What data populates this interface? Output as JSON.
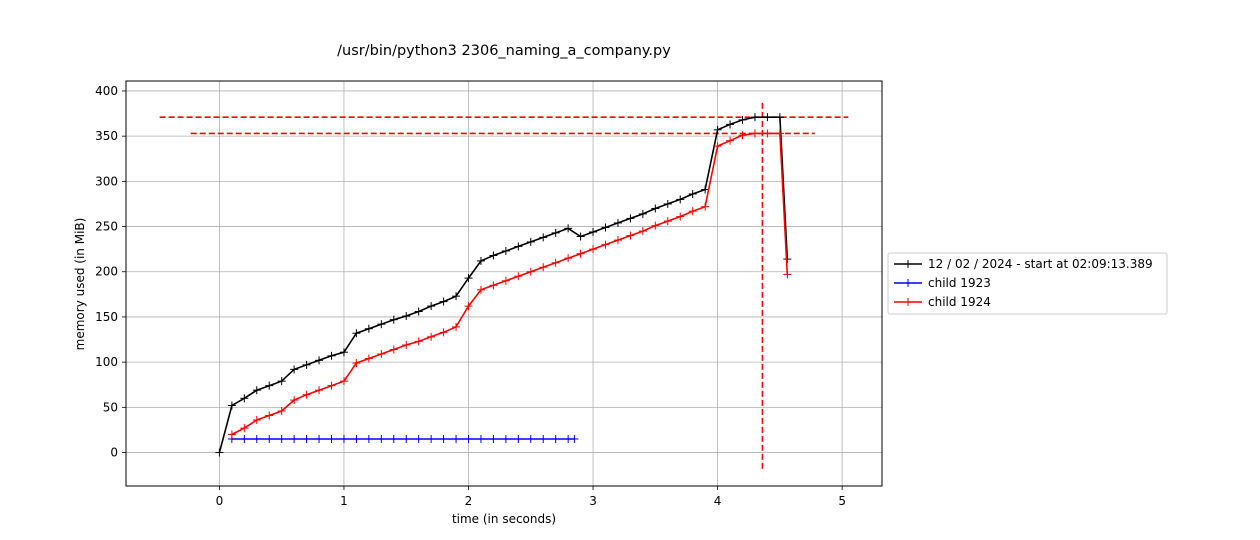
{
  "chart_data": {
    "type": "line",
    "title": "/usr/bin/python3 2306_naming_a_company.py",
    "xlabel": "time (in seconds)",
    "ylabel": "memory used (in MiB)",
    "xlim": [
      -0.75,
      5.32
    ],
    "ylim": [
      -37,
      411
    ],
    "xticks": [
      0,
      1,
      2,
      3,
      4,
      5
    ],
    "yticks": [
      0,
      50,
      100,
      150,
      200,
      250,
      300,
      350,
      400
    ],
    "grid": true,
    "legend_position": "outside-right",
    "series": [
      {
        "name": "12 / 02 / 2024 - start at 02:09:13.389",
        "color": "#000000",
        "marker": "+",
        "x": [
          0.0,
          0.1,
          0.2,
          0.3,
          0.4,
          0.5,
          0.6,
          0.7,
          0.8,
          0.9,
          1.0,
          1.1,
          1.2,
          1.3,
          1.4,
          1.5,
          1.6,
          1.7,
          1.8,
          1.9,
          2.0,
          2.1,
          2.2,
          2.3,
          2.4,
          2.5,
          2.6,
          2.7,
          2.8,
          2.9,
          3.0,
          3.1,
          3.2,
          3.3,
          3.4,
          3.5,
          3.6,
          3.7,
          3.8,
          3.9,
          4.0,
          4.1,
          4.2,
          4.3,
          4.4,
          4.5,
          4.56
        ],
        "y": [
          0,
          52,
          60,
          69,
          74,
          79,
          92,
          97,
          102,
          107,
          111,
          132,
          137,
          142,
          147,
          151,
          156,
          162,
          167,
          173,
          193,
          212,
          218,
          223,
          228,
          233,
          238,
          243,
          248,
          239,
          244,
          249,
          254,
          259,
          264,
          270,
          275,
          280,
          286,
          291,
          357,
          363,
          368,
          371,
          371,
          371,
          214
        ]
      },
      {
        "name": "child 1923",
        "color": "#0000ff",
        "marker": "+",
        "x": [
          0.1,
          0.2,
          0.3,
          0.4,
          0.5,
          0.6,
          0.7,
          0.8,
          0.9,
          1.0,
          1.1,
          1.2,
          1.3,
          1.4,
          1.5,
          1.6,
          1.7,
          1.8,
          1.9,
          2.0,
          2.1,
          2.2,
          2.3,
          2.4,
          2.5,
          2.6,
          2.7,
          2.8,
          2.85
        ],
        "y": [
          15,
          15,
          15,
          15,
          15,
          15,
          15,
          15,
          15,
          15,
          15,
          15,
          15,
          15,
          15,
          15,
          15,
          15,
          15,
          15,
          15,
          15,
          15,
          15,
          15,
          15,
          15,
          15,
          15
        ]
      },
      {
        "name": "child 1924",
        "color": "#ff0000",
        "marker": "+",
        "x": [
          0.1,
          0.2,
          0.3,
          0.4,
          0.5,
          0.6,
          0.7,
          0.8,
          0.9,
          1.0,
          1.1,
          1.2,
          1.3,
          1.4,
          1.5,
          1.6,
          1.7,
          1.8,
          1.9,
          2.0,
          2.1,
          2.2,
          2.3,
          2.4,
          2.5,
          2.6,
          2.7,
          2.8,
          2.9,
          3.0,
          3.1,
          3.2,
          3.3,
          3.4,
          3.5,
          3.6,
          3.7,
          3.8,
          3.9,
          4.0,
          4.1,
          4.2,
          4.3,
          4.4,
          4.5,
          4.56
        ],
        "y": [
          20,
          27,
          36,
          41,
          46,
          58,
          64,
          69,
          74,
          79,
          99,
          104,
          109,
          114,
          119,
          123,
          128,
          133,
          139,
          162,
          180,
          185,
          190,
          195,
          200,
          205,
          210,
          215,
          220,
          225,
          230,
          235,
          240,
          245,
          251,
          256,
          261,
          267,
          272,
          339,
          345,
          351,
          353,
          353,
          353,
          197
        ]
      }
    ],
    "reference_lines": [
      {
        "orientation": "horizontal",
        "value": 371,
        "from": -0.48,
        "to": 5.05,
        "color": "#ff0000",
        "style": "dashed"
      },
      {
        "orientation": "horizontal",
        "value": 353,
        "from": -0.23,
        "to": 4.78,
        "color": "#ff0000",
        "style": "dashed"
      },
      {
        "orientation": "vertical",
        "value": 4.36,
        "from": -18,
        "to": 389,
        "color": "#ff0000",
        "style": "dashed"
      }
    ]
  }
}
